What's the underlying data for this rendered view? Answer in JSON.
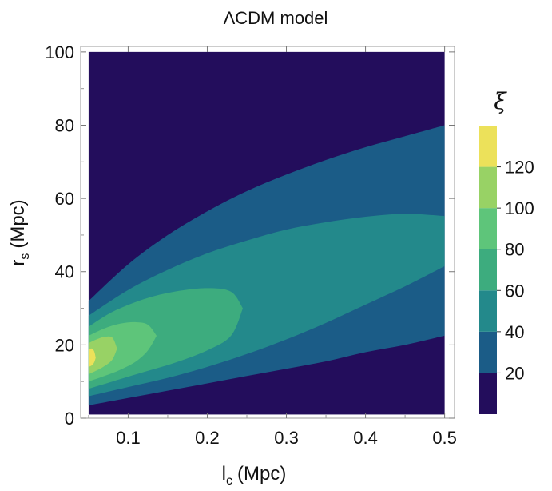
{
  "chart_data": {
    "type": "heatmap",
    "subtype": "filled-contour",
    "title": "ΛCDM model",
    "xlabel": "l",
    "xlabel_sub": "c",
    "xlabel_unit": "(Mpc)",
    "ylabel": "r",
    "ylabel_sub": "s",
    "ylabel_unit": "(Mpc)",
    "xlim": [
      0.04,
      0.5125
    ],
    "ylim": [
      0,
      101.5
    ],
    "x_ticks": [
      0.1,
      0.2,
      0.3,
      0.4,
      0.5
    ],
    "x_tick_labels": [
      "0.1",
      "0.2",
      "0.3",
      "0.4",
      "0.5"
    ],
    "y_ticks": [
      0,
      20,
      40,
      60,
      80,
      100
    ],
    "y_tick_labels": [
      "0",
      "20",
      "40",
      "60",
      "80",
      "100"
    ],
    "plot_region": {
      "x": [
        0.05,
        0.5
      ],
      "y": [
        1,
        100
      ]
    },
    "legend": {
      "title": "ξ",
      "placement": "right",
      "range": [
        0,
        140
      ],
      "tick_values": [
        20,
        40,
        60,
        80,
        100,
        120
      ],
      "tick_labels": [
        "20",
        "40",
        "60",
        "80",
        "100",
        "120"
      ],
      "levels": [
        {
          "from": 0,
          "to": 20,
          "color": "#230d5c"
        },
        {
          "from": 20,
          "to": 40,
          "color": "#1b5c87"
        },
        {
          "from": 40,
          "to": 60,
          "color": "#23898b"
        },
        {
          "from": 60,
          "to": 80,
          "color": "#3dac7e"
        },
        {
          "from": 80,
          "to": 100,
          "color": "#5ec57a"
        },
        {
          "from": 100,
          "to": 120,
          "color": "#98d265"
        },
        {
          "from": 120,
          "to": 140,
          "color": "#ece15a"
        }
      ]
    },
    "regions": [
      {
        "level": "20-40",
        "color": "#1b5c87",
        "upper": [
          [
            0.05,
            32
          ],
          [
            0.1,
            42
          ],
          [
            0.15,
            50
          ],
          [
            0.2,
            56.5
          ],
          [
            0.25,
            62
          ],
          [
            0.3,
            66.5
          ],
          [
            0.35,
            70.5
          ],
          [
            0.4,
            74
          ],
          [
            0.45,
            77
          ],
          [
            0.5,
            80
          ]
        ],
        "lower": [
          [
            0.05,
            3.5
          ],
          [
            0.1,
            5.5
          ],
          [
            0.15,
            7.5
          ],
          [
            0.2,
            9.5
          ],
          [
            0.25,
            11.5
          ],
          [
            0.3,
            13.5
          ],
          [
            0.35,
            15.5
          ],
          [
            0.4,
            18
          ],
          [
            0.45,
            20
          ],
          [
            0.5,
            22.5
          ]
        ]
      },
      {
        "level": "40-60",
        "color": "#23898b",
        "upper": [
          [
            0.05,
            28
          ],
          [
            0.1,
            35
          ],
          [
            0.15,
            40.5
          ],
          [
            0.2,
            45
          ],
          [
            0.25,
            48.5
          ],
          [
            0.3,
            51.5
          ],
          [
            0.35,
            53.5
          ],
          [
            0.4,
            55
          ],
          [
            0.45,
            55.8
          ],
          [
            0.5,
            55.2
          ]
        ],
        "lower": [
          [
            0.05,
            6
          ],
          [
            0.1,
            8.5
          ],
          [
            0.15,
            11
          ],
          [
            0.2,
            14
          ],
          [
            0.25,
            17.5
          ],
          [
            0.3,
            21.5
          ],
          [
            0.35,
            26
          ],
          [
            0.4,
            31
          ],
          [
            0.45,
            36
          ],
          [
            0.5,
            41.5
          ]
        ]
      },
      {
        "level": "60-80",
        "color": "#3dac7e",
        "upper": [
          [
            0.05,
            25
          ],
          [
            0.08,
            29
          ],
          [
            0.12,
            32.5
          ],
          [
            0.16,
            34.6
          ],
          [
            0.2,
            35.5
          ],
          [
            0.23,
            34.5
          ],
          [
            0.245,
            30
          ]
        ],
        "lower": [
          [
            0.05,
            8
          ],
          [
            0.08,
            10
          ],
          [
            0.12,
            12.6
          ],
          [
            0.16,
            15.2
          ],
          [
            0.2,
            18.5
          ],
          [
            0.23,
            22.5
          ],
          [
            0.245,
            30
          ]
        ]
      },
      {
        "level": "80-100",
        "color": "#5ec57a",
        "upper": [
          [
            0.05,
            22.5
          ],
          [
            0.07,
            24.5
          ],
          [
            0.09,
            25.8
          ],
          [
            0.11,
            26.2
          ],
          [
            0.125,
            25.5
          ],
          [
            0.136,
            22.5
          ]
        ],
        "lower": [
          [
            0.05,
            10
          ],
          [
            0.07,
            11.5
          ],
          [
            0.09,
            13.2
          ],
          [
            0.11,
            15.5
          ],
          [
            0.125,
            18.5
          ],
          [
            0.136,
            22.5
          ]
        ]
      },
      {
        "level": "100-120",
        "color": "#98d265",
        "upper": [
          [
            0.05,
            20.5
          ],
          [
            0.06,
            21.5
          ],
          [
            0.07,
            22.2
          ],
          [
            0.08,
            22
          ],
          [
            0.086,
            19
          ]
        ],
        "lower": [
          [
            0.05,
            12
          ],
          [
            0.06,
            13
          ],
          [
            0.07,
            14.2
          ],
          [
            0.08,
            16
          ],
          [
            0.086,
            19
          ]
        ]
      },
      {
        "level": "120-140",
        "color": "#ece15a",
        "upper": [
          [
            0.05,
            18.8
          ],
          [
            0.054,
            19
          ],
          [
            0.057,
            18.3
          ],
          [
            0.059,
            16.5
          ]
        ],
        "lower": [
          [
            0.05,
            14
          ],
          [
            0.054,
            14.4
          ],
          [
            0.057,
            15.2
          ],
          [
            0.059,
            16.5
          ]
        ]
      }
    ]
  }
}
